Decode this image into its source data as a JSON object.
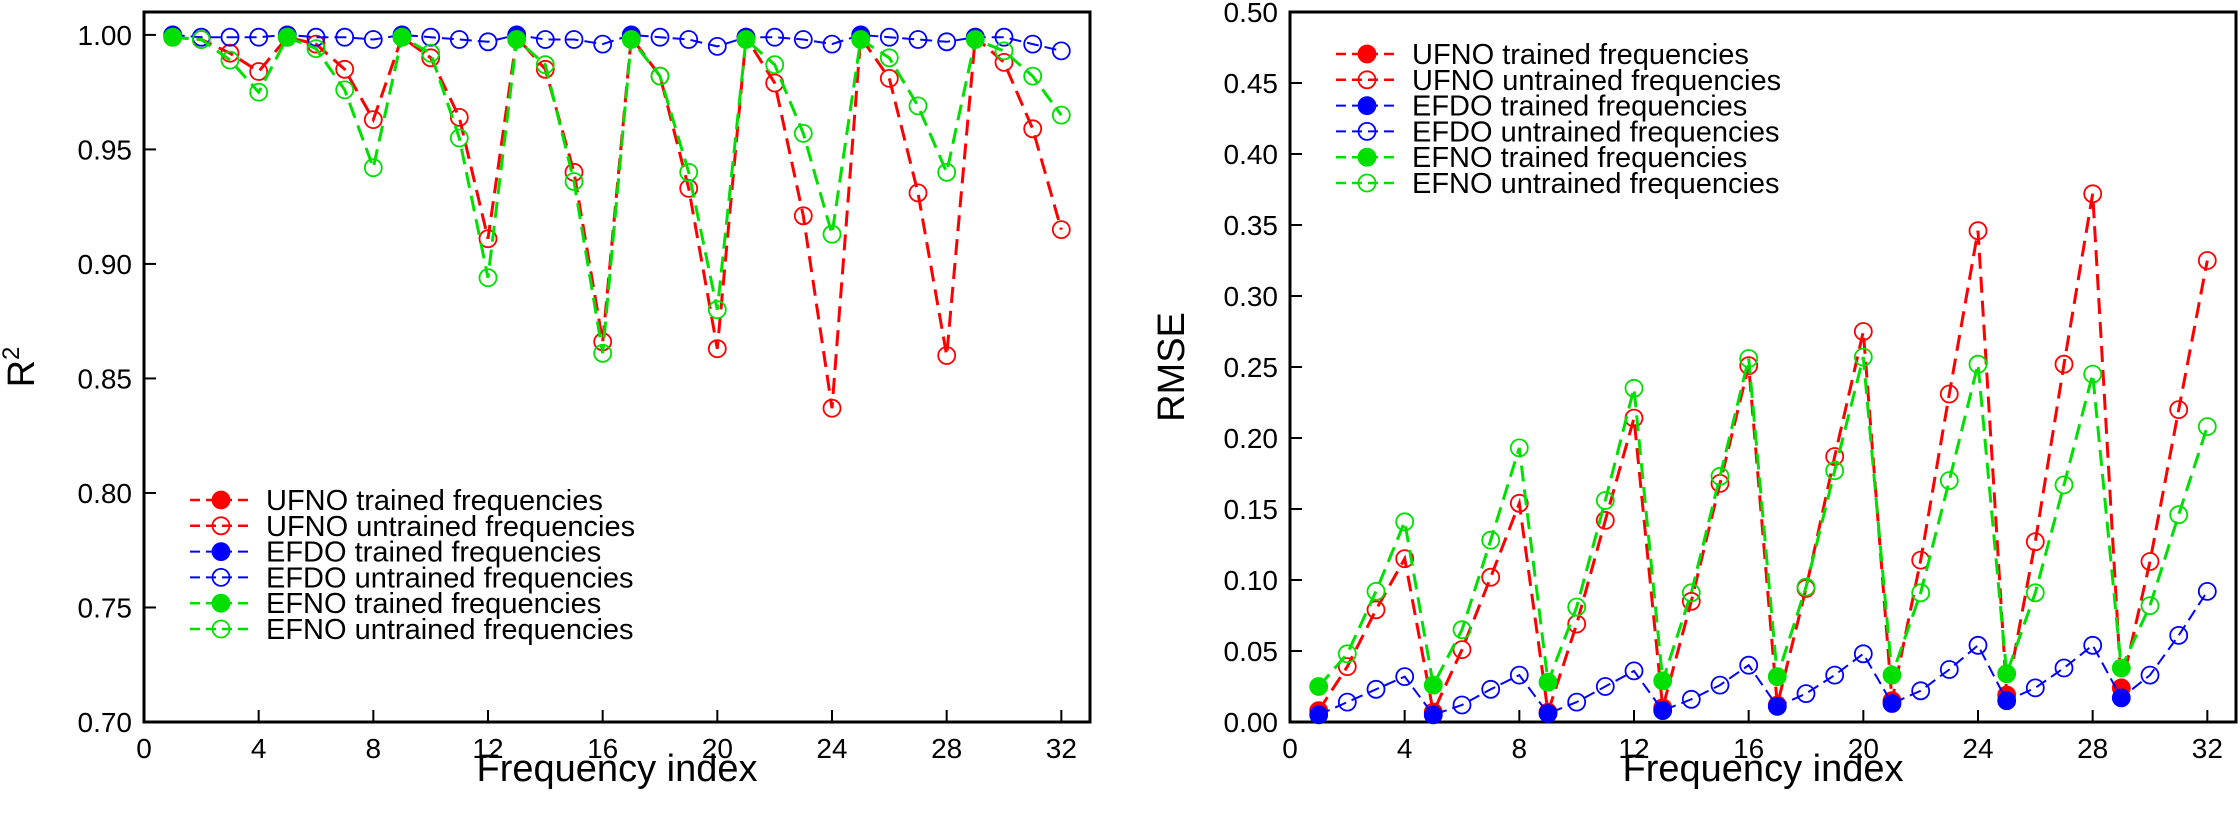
{
  "colors": {
    "ufno": "#ff0000",
    "efdo": "#0000ff",
    "efno": "#00e000"
  },
  "chart_data": [
    {
      "type": "line",
      "xlabel": "Frequency index",
      "ylabel": "R",
      "ylabel_superscript": "2",
      "xlim": [
        0,
        33
      ],
      "ylim": [
        0.7,
        1.01
      ],
      "xticks": [
        0,
        4,
        8,
        12,
        16,
        20,
        24,
        28,
        32
      ],
      "xtick_labels": [
        "0",
        "4",
        "8",
        "12",
        "16",
        "20",
        "24",
        "28",
        "32"
      ],
      "yticks": [
        0.7,
        0.75,
        0.8,
        0.85,
        0.9,
        0.95,
        1.0
      ],
      "ytick_labels": [
        "0.70",
        "0.75",
        "0.80",
        "0.85",
        "0.90",
        "0.95",
        "1.00"
      ],
      "legend_position": "bottom-left",
      "x": [
        1,
        2,
        3,
        4,
        5,
        6,
        7,
        8,
        9,
        10,
        11,
        12,
        13,
        14,
        15,
        16,
        17,
        18,
        19,
        20,
        21,
        22,
        23,
        24,
        25,
        26,
        27,
        28,
        29,
        30,
        31,
        32
      ],
      "trained_x": [
        1,
        5,
        9,
        13,
        17,
        21,
        25,
        29
      ],
      "series": [
        {
          "name": "UFNO",
          "color_key": "ufno",
          "values": [
            0.999,
            0.998,
            0.992,
            0.984,
            0.999,
            0.996,
            0.985,
            0.963,
            0.999,
            0.99,
            0.964,
            0.911,
            0.999,
            0.985,
            0.94,
            0.866,
            0.999,
            0.982,
            0.933,
            0.863,
            0.999,
            0.979,
            0.921,
            0.837,
            0.999,
            0.981,
            0.931,
            0.86,
            0.999,
            0.988,
            0.959,
            0.915
          ]
        },
        {
          "name": "EFDO",
          "color_key": "efdo",
          "values": [
            1.0,
            0.999,
            0.999,
            0.999,
            1.0,
            0.999,
            0.999,
            0.998,
            1.0,
            0.999,
            0.998,
            0.997,
            1.0,
            0.998,
            0.998,
            0.996,
            1.0,
            0.999,
            0.998,
            0.995,
            0.999,
            0.999,
            0.998,
            0.996,
            1.0,
            0.999,
            0.998,
            0.997,
            0.999,
            0.999,
            0.996,
            0.993
          ]
        },
        {
          "name": "EFNO",
          "color_key": "efno",
          "values": [
            0.999,
            0.998,
            0.989,
            0.975,
            0.999,
            0.994,
            0.976,
            0.942,
            0.999,
            0.992,
            0.955,
            0.894,
            0.998,
            0.987,
            0.936,
            0.861,
            0.998,
            0.982,
            0.94,
            0.88,
            0.998,
            0.987,
            0.957,
            0.913,
            0.998,
            0.99,
            0.969,
            0.94,
            0.998,
            0.993,
            0.982,
            0.965
          ]
        }
      ]
    },
    {
      "type": "line",
      "xlabel": "Frequency index",
      "ylabel": "RMSE",
      "xlim": [
        0,
        33
      ],
      "ylim": [
        0.0,
        0.5
      ],
      "xticks": [
        0,
        4,
        8,
        12,
        16,
        20,
        24,
        28,
        32
      ],
      "xtick_labels": [
        "0",
        "4",
        "8",
        "12",
        "16",
        "20",
        "24",
        "28",
        "32"
      ],
      "yticks": [
        0.0,
        0.05,
        0.1,
        0.15,
        0.2,
        0.25,
        0.3,
        0.35,
        0.4,
        0.45,
        0.5
      ],
      "ytick_labels": [
        "0.00",
        "0.05",
        "0.10",
        "0.15",
        "0.20",
        "0.25",
        "0.30",
        "0.35",
        "0.40",
        "0.45",
        "0.50"
      ],
      "legend_position": "top-left",
      "x": [
        1,
        2,
        3,
        4,
        5,
        6,
        7,
        8,
        9,
        10,
        11,
        12,
        13,
        14,
        15,
        16,
        17,
        18,
        19,
        20,
        21,
        22,
        23,
        24,
        25,
        26,
        27,
        28,
        29,
        30,
        31,
        32
      ],
      "trained_x": [
        1,
        5,
        9,
        13,
        17,
        21,
        25,
        29
      ],
      "series": [
        {
          "name": "UFNO",
          "color_key": "ufno",
          "values": [
            0.008,
            0.039,
            0.079,
            0.115,
            0.007,
            0.051,
            0.102,
            0.154,
            0.007,
            0.069,
            0.142,
            0.214,
            0.01,
            0.085,
            0.168,
            0.251,
            0.012,
            0.094,
            0.187,
            0.275,
            0.015,
            0.114,
            0.231,
            0.346,
            0.019,
            0.127,
            0.252,
            0.372,
            0.024,
            0.113,
            0.22,
            0.325
          ]
        },
        {
          "name": "EFDO",
          "color_key": "efdo",
          "values": [
            0.005,
            0.014,
            0.023,
            0.032,
            0.005,
            0.012,
            0.023,
            0.033,
            0.006,
            0.014,
            0.025,
            0.036,
            0.008,
            0.016,
            0.026,
            0.04,
            0.011,
            0.02,
            0.033,
            0.048,
            0.013,
            0.022,
            0.037,
            0.054,
            0.015,
            0.024,
            0.038,
            0.054,
            0.017,
            0.033,
            0.061,
            0.092
          ]
        },
        {
          "name": "EFNO",
          "color_key": "efno",
          "values": [
            0.025,
            0.048,
            0.092,
            0.141,
            0.026,
            0.065,
            0.128,
            0.193,
            0.028,
            0.081,
            0.156,
            0.235,
            0.029,
            0.091,
            0.173,
            0.256,
            0.032,
            0.095,
            0.177,
            0.257,
            0.033,
            0.091,
            0.17,
            0.252,
            0.034,
            0.091,
            0.167,
            0.245,
            0.038,
            0.082,
            0.146,
            0.208
          ]
        }
      ]
    }
  ],
  "legend_entries": [
    "UFNO trained frequencies",
    "UFNO untrained frequencies",
    "EFDO trained frequencies",
    "EFDO untrained frequencies",
    "EFNO trained frequencies",
    "EFNO untrained frequencies"
  ]
}
